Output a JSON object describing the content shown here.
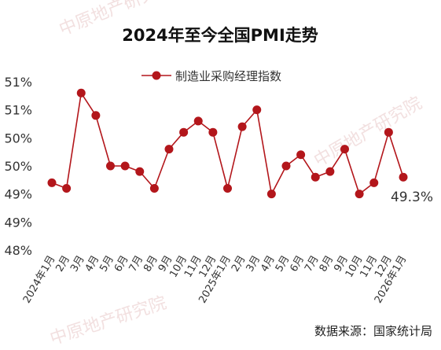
{
  "watermark": "中原地产研究院",
  "source_note": "数据来源：国家统计局",
  "chart_data": {
    "type": "line",
    "title": "2024年至今全国PMI走势",
    "legend": {
      "label": "制造业采购经理指数",
      "position": "top"
    },
    "categories": [
      "2024年1月",
      "2月",
      "3月",
      "4月",
      "5月",
      "6月",
      "7月",
      "8月",
      "9月",
      "10月",
      "11月",
      "12月",
      "2025年1月",
      "2月",
      "3月",
      "4月",
      "5月",
      "6月",
      "7月",
      "8月",
      "9月",
      "10月",
      "11月",
      "12月",
      "2026年1月"
    ],
    "series": [
      {
        "name": "制造业采购经理指数",
        "values": [
          49.2,
          49.1,
          50.8,
          50.4,
          49.5,
          49.5,
          49.4,
          49.1,
          49.8,
          50.1,
          50.3,
          50.1,
          49.1,
          50.2,
          50.5,
          49.0,
          49.5,
          49.7,
          49.3,
          49.4,
          49.8,
          49.0,
          49.2,
          50.1,
          49.3
        ],
        "color": "#b3161b"
      }
    ],
    "ytick_labels": [
      "48%",
      "49%",
      "49%",
      "50%",
      "50%",
      "51%",
      "51%"
    ],
    "ylim": [
      48.0,
      51.0
    ],
    "last_label": "49.3%",
    "grid": false
  }
}
